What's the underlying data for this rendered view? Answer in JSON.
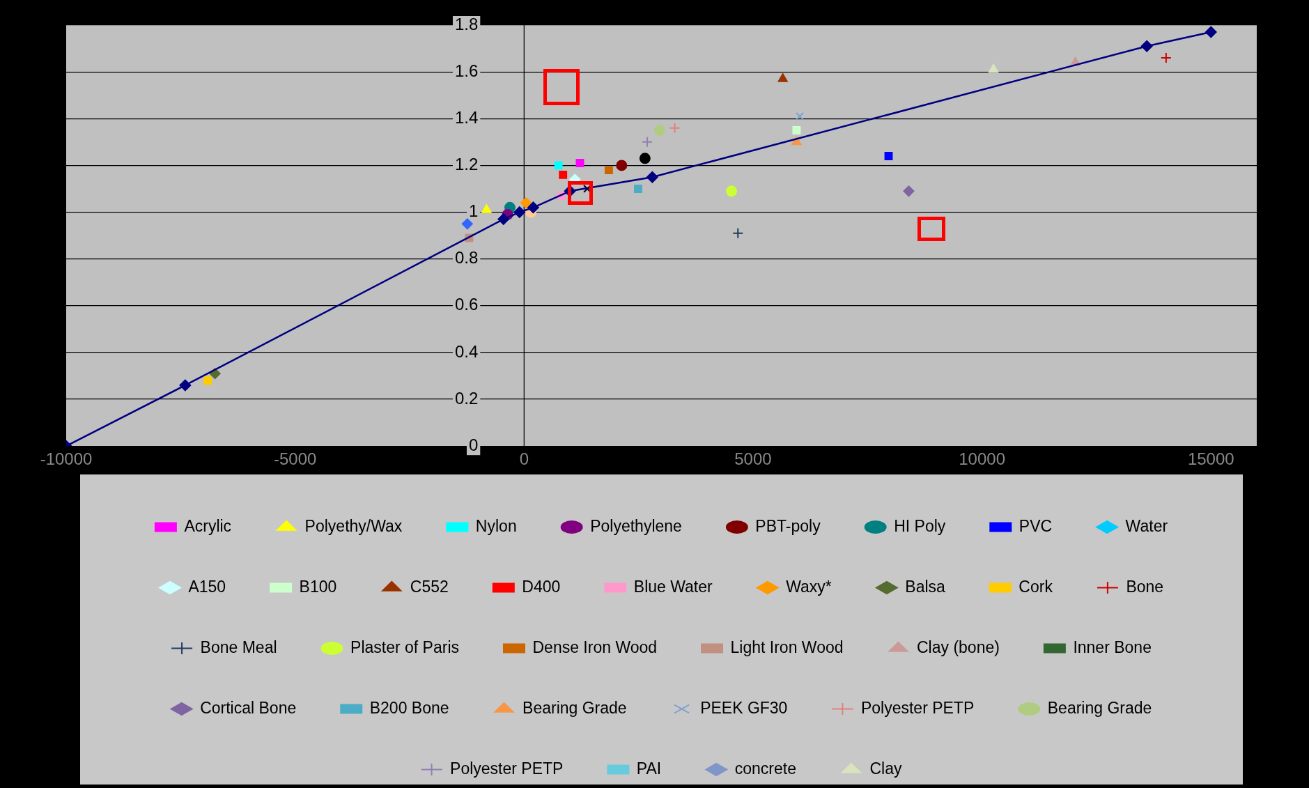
{
  "chart_data": {
    "type": "scatter",
    "xlim": [
      -10000,
      16000
    ],
    "xticks": [
      -10000,
      -5000,
      0,
      5000,
      10000,
      15000
    ],
    "ylim": [
      0,
      1.8
    ],
    "yticks": [
      0,
      0.2,
      0.4,
      0.6,
      0.8,
      1,
      1.2,
      1.4,
      1.6,
      1.8
    ],
    "grid": "y",
    "legend": "bottom",
    "ref_lines": [
      {
        "axis": "x",
        "value": 0,
        "color": "#000000"
      }
    ],
    "series": [
      {
        "type": "line",
        "marker": "diamond",
        "color": "#000080",
        "x": [
          -10000,
          -7400,
          -450,
          -100,
          200,
          1000,
          2800,
          13600,
          15000
        ],
        "values": [
          0,
          0.26,
          0.97,
          1.0,
          1.02,
          1.09,
          1.15,
          1.71,
          1.77
        ]
      },
      {
        "name": "Acrylic",
        "marker": "square",
        "color": "#ff00ff",
        "x": [
          1220
        ],
        "values": [
          1.21
        ]
      },
      {
        "name": "Polyethy/Wax",
        "marker": "triangle",
        "color": "#ffff00",
        "x": [
          -820
        ],
        "values": [
          1.01
        ]
      },
      {
        "name": "Nylon",
        "marker": "square",
        "color": "#00ffff",
        "x": [
          750
        ],
        "values": [
          1.2
        ]
      },
      {
        "name": "Polyethylene",
        "marker": "circle",
        "color": "#800080",
        "x": [
          -360
        ],
        "values": [
          0.99
        ]
      },
      {
        "name": "PBT-poly",
        "marker": "circle",
        "color": "#800000",
        "x": [
          2130
        ],
        "values": [
          1.2
        ]
      },
      {
        "name": "HI Poly",
        "marker": "circle",
        "color": "#008080",
        "x": [
          -310
        ],
        "values": [
          1.02
        ]
      },
      {
        "name": "PVC",
        "marker": "square",
        "color": "#0000ff",
        "x": [
          7960
        ],
        "values": [
          1.24
        ]
      },
      {
        "name": "Water",
        "marker": "diamond",
        "color": "#00ccff",
        "x": [
          null
        ],
        "values": [
          null
        ]
      },
      {
        "name": "A150",
        "marker": "diamond",
        "color": "#ccffff",
        "x": [
          1110
        ],
        "values": [
          1.14
        ]
      },
      {
        "name": "B100",
        "marker": "square",
        "color": "#ccffcc",
        "x": [
          5950
        ],
        "values": [
          1.35
        ]
      },
      {
        "name": "C552",
        "marker": "triangle",
        "color": "#993300",
        "x": [
          5650
        ],
        "values": [
          1.57
        ]
      },
      {
        "name": "D400",
        "marker": "square",
        "color": "#ff0000",
        "x": [
          850
        ],
        "values": [
          1.16
        ]
      },
      {
        "name": "Blue Water",
        "marker": "square",
        "color": "#ff99cc",
        "x": [
          820
        ],
        "values": [
          1.07
        ]
      },
      {
        "marker": "diamond",
        "color": "#3366ff",
        "x": [
          -1240
        ],
        "values": [
          0.95
        ]
      },
      {
        "marker": "circle",
        "color": "#000000",
        "x": [
          2640
        ],
        "values": [
          1.23
        ]
      },
      {
        "marker": "circle",
        "color": "#ffcc99",
        "x": [
          150
        ],
        "values": [
          1.0
        ]
      },
      {
        "name": "Waxy*",
        "marker": "diamond",
        "color": "#ff9900",
        "x": [
          40
        ],
        "values": [
          1.04
        ]
      },
      {
        "name": "Balsa",
        "marker": "diamond",
        "color": "#556b2f",
        "x": [
          -6750
        ],
        "values": [
          0.31
        ]
      },
      {
        "name": "Cork",
        "marker": "square",
        "color": "#ffcc00",
        "x": [
          -6910
        ],
        "values": [
          0.28
        ]
      },
      {
        "marker": "x",
        "color": "#000000",
        "x": [
          1380
        ],
        "values": [
          1.1
        ]
      },
      {
        "name": "Bone",
        "marker": "cross",
        "color": "#cc0000",
        "x": [
          14020
        ],
        "values": [
          1.66
        ]
      },
      {
        "name": "Bone Meal",
        "marker": "cross",
        "color": "#1f3a5f",
        "x": [
          4670
        ],
        "values": [
          0.91
        ]
      },
      {
        "name": "Plaster of Paris",
        "marker": "circle",
        "color": "#ccff33",
        "x": [
          4530
        ],
        "values": [
          1.09
        ]
      },
      {
        "name": "Dense Iron Wood",
        "marker": "square",
        "color": "#cc6600",
        "x": [
          1850
        ],
        "values": [
          1.18
        ]
      },
      {
        "name": "Light Iron Wood",
        "marker": "square",
        "color": "#c09080",
        "x": [
          -1200
        ],
        "values": [
          0.89
        ]
      },
      {
        "name": "Clay (bone)",
        "marker": "triangle",
        "color": "#cc9999",
        "x": [
          12040
        ],
        "values": [
          1.64
        ]
      },
      {
        "name": "Inner Bone",
        "marker": "square",
        "color": "#336633",
        "x": [
          null
        ],
        "values": [
          null
        ]
      },
      {
        "name": "Cortical Bone",
        "marker": "diamond",
        "color": "#8064a2",
        "x": [
          8400
        ],
        "values": [
          1.09
        ]
      },
      {
        "name": "B200 Bone",
        "marker": "square",
        "color": "#4bacc6",
        "x": [
          2490
        ],
        "values": [
          1.1
        ]
      },
      {
        "name": "Bearing Grade",
        "marker": "triangle",
        "color": "#f79646",
        "x": [
          5950
        ],
        "values": [
          1.3
        ]
      },
      {
        "name": "PEEK GF30",
        "marker": "x",
        "color": "#7f9fd0",
        "x": [
          6020
        ],
        "values": [
          1.41
        ]
      },
      {
        "name": "Polyester PETP",
        "marker": "cross",
        "color": "#e08080",
        "x": [
          3290
        ],
        "values": [
          1.36
        ]
      },
      {
        "name": "Bearing Grade",
        "marker": "circle",
        "color": "#b0cc80",
        "x": [
          2960
        ],
        "values": [
          1.35
        ]
      },
      {
        "name": "Polyester PETP",
        "marker": "cross",
        "color": "#9080b0",
        "x": [
          2690
        ],
        "values": [
          1.3
        ]
      },
      {
        "name": "PAI",
        "marker": "square",
        "color": "#66ccdd",
        "x": [
          null
        ],
        "values": [
          null
        ]
      },
      {
        "name": "concrete",
        "marker": "diamond",
        "color": "#8096c8",
        "x": [
          null
        ],
        "values": [
          null
        ]
      },
      {
        "name": "Clay",
        "marker": "triangle",
        "color": "#d8e4bc",
        "x": [
          10250
        ],
        "values": [
          1.61
        ]
      }
    ]
  }
}
